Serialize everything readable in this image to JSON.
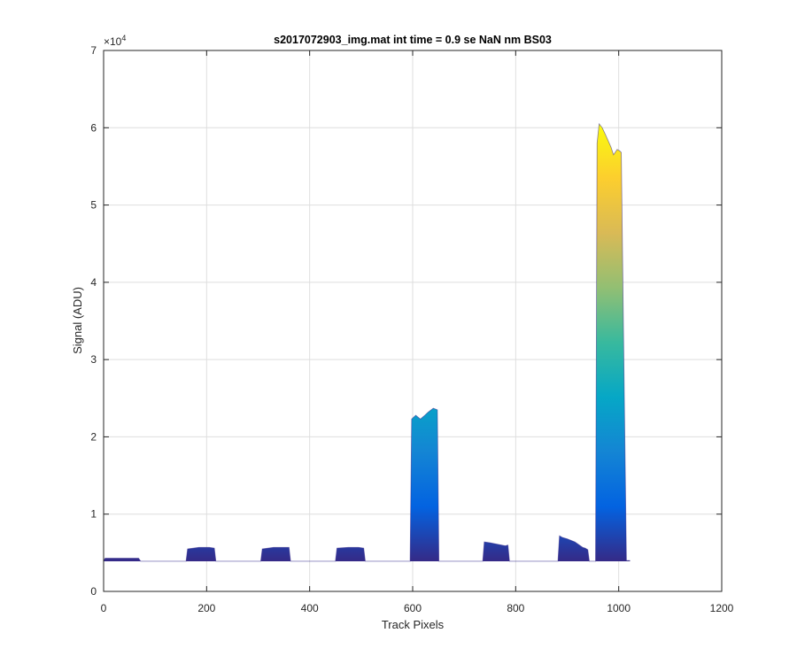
{
  "chart_data": {
    "type": "area",
    "title": "s2017072903_img.mat int time = 0.9 se  NaN nm BS03",
    "xlabel": "Track Pixels",
    "ylabel": "Signal (ADU)",
    "xlim": [
      0,
      1200
    ],
    "ylim": [
      0,
      70000
    ],
    "y_exponent_label": "×10",
    "y_exponent_power": "4",
    "x_ticks": [
      0,
      200,
      400,
      600,
      800,
      1000,
      1200
    ],
    "y_ticks": [
      0,
      1,
      2,
      3,
      4,
      5,
      6,
      7
    ],
    "grid": true,
    "baseline": 3900,
    "colormap": [
      "#352a87",
      "#0363e1",
      "#1485d4",
      "#06a7c6",
      "#38b99e",
      "#92bf73",
      "#d9ba56",
      "#fcce2e",
      "#f9fb0e"
    ],
    "x": [
      0,
      3,
      68,
      72,
      160,
      163,
      185,
      205,
      215,
      218,
      305,
      308,
      330,
      350,
      360,
      363,
      450,
      453,
      475,
      495,
      505,
      508,
      595,
      598,
      606,
      615,
      622,
      630,
      640,
      648,
      651,
      736,
      739,
      750,
      765,
      780,
      785,
      788,
      882,
      885,
      890,
      900,
      915,
      930,
      935,
      940,
      943,
      955,
      958,
      962,
      968,
      975,
      985,
      990,
      997,
      1002,
      1005,
      1010,
      1015,
      1022
    ],
    "y": [
      4000,
      4300,
      4300,
      3900,
      3900,
      5500,
      5700,
      5700,
      5600,
      3900,
      3900,
      5500,
      5700,
      5700,
      5700,
      3900,
      3900,
      5600,
      5700,
      5700,
      5600,
      3900,
      3900,
      22300,
      22800,
      22300,
      22700,
      23200,
      23700,
      23500,
      3900,
      3900,
      6400,
      6300,
      6100,
      5900,
      6000,
      3900,
      3900,
      7200,
      7000,
      6800,
      6400,
      5700,
      5600,
      5400,
      3900,
      3900,
      58000,
      60500,
      60000,
      59000,
      57500,
      56500,
      57200,
      57000,
      56800,
      30000,
      4000,
      4000
    ]
  }
}
